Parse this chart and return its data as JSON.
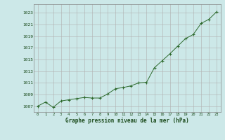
{
  "x": [
    0,
    1,
    2,
    3,
    4,
    5,
    6,
    7,
    8,
    9,
    10,
    11,
    12,
    13,
    14,
    15,
    16,
    17,
    18,
    19,
    20,
    21,
    22,
    23
  ],
  "y": [
    1007.0,
    1007.7,
    1006.8,
    1007.9,
    1008.1,
    1008.3,
    1008.5,
    1008.4,
    1008.4,
    1009.1,
    1010.0,
    1010.2,
    1010.5,
    1011.0,
    1011.1,
    1013.6,
    1014.8,
    1016.0,
    1017.3,
    1018.6,
    1019.3,
    1021.2,
    1021.9,
    1023.2
  ],
  "line_color": "#2d6a2d",
  "marker_color": "#2d6a2d",
  "bg_color": "#cce8e8",
  "grid_color": "#b0b0b0",
  "xlabel": "Graphe pression niveau de la mer (hPa)",
  "xlabel_color": "#1a4a1a",
  "tick_label_color": "#1a4a1a",
  "ylim_min": 1006.0,
  "ylim_max": 1024.5,
  "yticks": [
    1007,
    1009,
    1011,
    1013,
    1015,
    1017,
    1019,
    1021,
    1023
  ],
  "xticks": [
    0,
    1,
    2,
    3,
    4,
    5,
    6,
    7,
    8,
    9,
    10,
    11,
    12,
    13,
    14,
    15,
    16,
    17,
    18,
    19,
    20,
    21,
    22,
    23
  ],
  "figwidth": 3.2,
  "figheight": 2.0,
  "dpi": 100
}
